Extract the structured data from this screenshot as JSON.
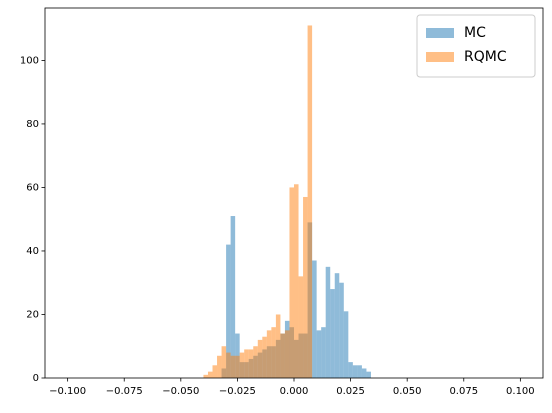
{
  "chart_data": {
    "type": "histogram",
    "bins": [
      -0.1,
      -0.098,
      -0.096,
      -0.094,
      -0.092,
      -0.09,
      -0.088,
      -0.086,
      -0.084,
      -0.082,
      -0.08,
      -0.078,
      -0.076,
      -0.074,
      -0.072,
      -0.07,
      -0.068,
      -0.066,
      -0.064,
      -0.062,
      -0.06,
      -0.058,
      -0.056,
      -0.054,
      -0.052,
      -0.05,
      -0.048,
      -0.046,
      -0.044,
      -0.042,
      -0.04,
      -0.038,
      -0.036,
      -0.034,
      -0.032,
      -0.03,
      -0.028,
      -0.026,
      -0.024,
      -0.022,
      -0.02,
      -0.018,
      -0.016,
      -0.014,
      -0.012,
      -0.01,
      -0.008,
      -0.006,
      -0.004,
      -0.002,
      0,
      0.002,
      0.004,
      0.006,
      0.008,
      0.01,
      0.012,
      0.014,
      0.016,
      0.018,
      0.02,
      0.022,
      0.024,
      0.026,
      0.028,
      0.03,
      0.032,
      0.034,
      0.036,
      0.038,
      0.04,
      0.042,
      0.044,
      0.046,
      0.048,
      0.05,
      0.052,
      0.054,
      0.056,
      0.058,
      0.06,
      0.062,
      0.064,
      0.066,
      0.068,
      0.07,
      0.072,
      0.074,
      0.076,
      0.078,
      0.08,
      0.082,
      0.084,
      0.086,
      0.088,
      0.09,
      0.092,
      0.094,
      0.096,
      0.098,
      0.1
    ],
    "series": [
      {
        "name": "MC",
        "color": "#1f77b4",
        "values": [
          0,
          0,
          0,
          0,
          0,
          0,
          0,
          0,
          0,
          0,
          0,
          0,
          0,
          0,
          0,
          0,
          0,
          0,
          0,
          0,
          0,
          0,
          0,
          0,
          0,
          0,
          0,
          0,
          0,
          0,
          0,
          0,
          0,
          0,
          3,
          42,
          51,
          14,
          5,
          5,
          6,
          7,
          8,
          9,
          10,
          10,
          12,
          14,
          18,
          16,
          12,
          14,
          14,
          49,
          37,
          15,
          16,
          35,
          28,
          33,
          30,
          21,
          5,
          4,
          4,
          3,
          2,
          0,
          0,
          0,
          0,
          0,
          0,
          0,
          0,
          0,
          0,
          0,
          0,
          0,
          0,
          0,
          0,
          0,
          0,
          0,
          0,
          0,
          0,
          0,
          0,
          0,
          0,
          0,
          0,
          0,
          0,
          0,
          0,
          0
        ]
      },
      {
        "name": "RQMC",
        "color": "#ff7f0e",
        "values": [
          0,
          0,
          0,
          0,
          0,
          0,
          0,
          0,
          0,
          0,
          0,
          0,
          0,
          0,
          0,
          0,
          0,
          0,
          0,
          0,
          0,
          0,
          0,
          0,
          0,
          0,
          0,
          0,
          0,
          0,
          1,
          2,
          4,
          7,
          10,
          8,
          7,
          7,
          8,
          9,
          9,
          10,
          12,
          13,
          15,
          16,
          20,
          14,
          15,
          60,
          61,
          32,
          57,
          111,
          0,
          0,
          0,
          0,
          0,
          0,
          0,
          0,
          0,
          0,
          0,
          0,
          0,
          0,
          0,
          0,
          0,
          0,
          0,
          0,
          0,
          0,
          0,
          0,
          0,
          0,
          0,
          0,
          0,
          0,
          0,
          0,
          0,
          0,
          0,
          0,
          0,
          0,
          0,
          0,
          0,
          0,
          0,
          0,
          0,
          0
        ]
      }
    ],
    "xlim": [
      -0.11,
      0.11
    ],
    "xticks": [
      {
        "value": -0.1,
        "label": "−0.100"
      },
      {
        "value": -0.075,
        "label": "−0.075"
      },
      {
        "value": -0.05,
        "label": "−0.050"
      },
      {
        "value": -0.025,
        "label": "−0.025"
      },
      {
        "value": 0,
        "label": "0.000"
      },
      {
        "value": 0.025,
        "label": "0.025"
      },
      {
        "value": 0.05,
        "label": "0.050"
      },
      {
        "value": 0.075,
        "label": "0.075"
      },
      {
        "value": 0.1,
        "label": "0.100"
      }
    ],
    "ylim": [
      0,
      116.5
    ],
    "yticks": [
      0,
      20,
      40,
      60,
      80,
      100
    ],
    "legend": "upper right"
  }
}
